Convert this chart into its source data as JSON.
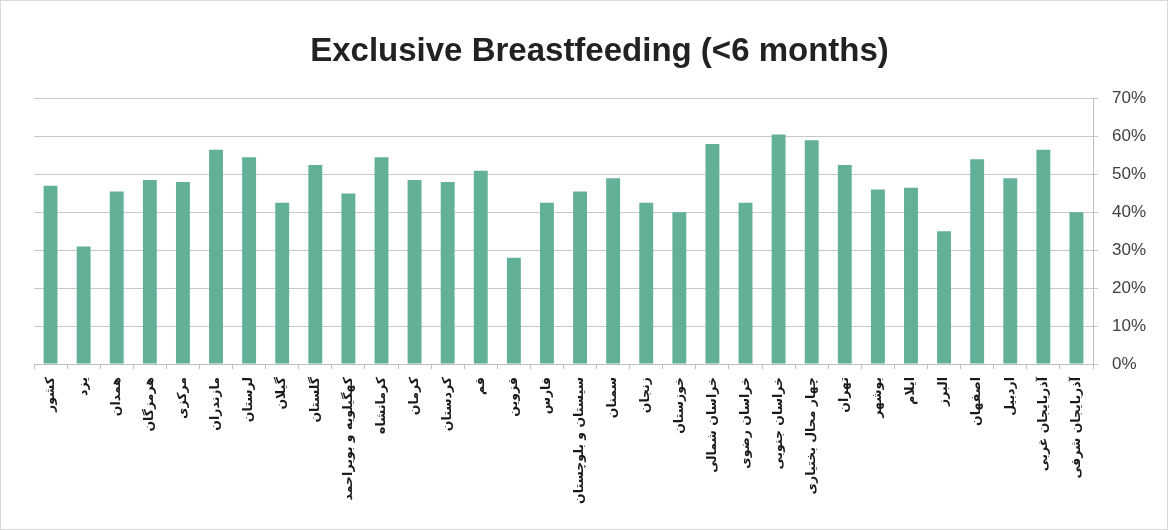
{
  "chart_data": {
    "type": "bar",
    "title": "Exclusive Breastfeeding (<6 months)",
    "categories": [
      "کشور",
      "یزد",
      "همدان",
      "هرمزگان",
      "مرکزی",
      "مازندران",
      "لرستان",
      "گیلان",
      "گلستان",
      "کهگیلویه و بویراحمد",
      "کرمانشاه",
      "کرمان",
      "کردستان",
      "قم",
      "قزوین",
      "فارس",
      "سیستان و بلوچستان",
      "سمنان",
      "زنجان",
      "خوزستان",
      "خراسان شمالی",
      "خراسان رضوی",
      "خراسان جنوبی",
      "چهار محال بختیاری",
      "تهران",
      "بوشهر",
      "ایلام",
      "البرز",
      "اصفهان",
      "اردبیل",
      "آذربایجان غربی",
      "آذربایجان شرقی"
    ],
    "values": [
      47,
      31,
      45.5,
      48.5,
      48,
      56.5,
      54.5,
      42.5,
      52.5,
      45,
      54.5,
      48.5,
      48,
      51,
      28,
      42.5,
      45.5,
      49,
      42.5,
      40,
      58,
      42.5,
      60.5,
      59,
      52.5,
      46,
      46.5,
      35,
      54,
      49,
      56.5,
      40
    ],
    "color": "#62b098",
    "ylim": [
      0,
      70
    ],
    "yticks": [
      {
        "value": 0,
        "label": "0%"
      },
      {
        "value": 10,
        "label": "10%"
      },
      {
        "value": 20,
        "label": "20%"
      },
      {
        "value": 30,
        "label": "30%"
      },
      {
        "value": 40,
        "label": "40%"
      },
      {
        "value": 50,
        "label": "50%"
      },
      {
        "value": 60,
        "label": "60%"
      },
      {
        "value": 70,
        "label": "70%"
      }
    ],
    "grid": "y"
  }
}
